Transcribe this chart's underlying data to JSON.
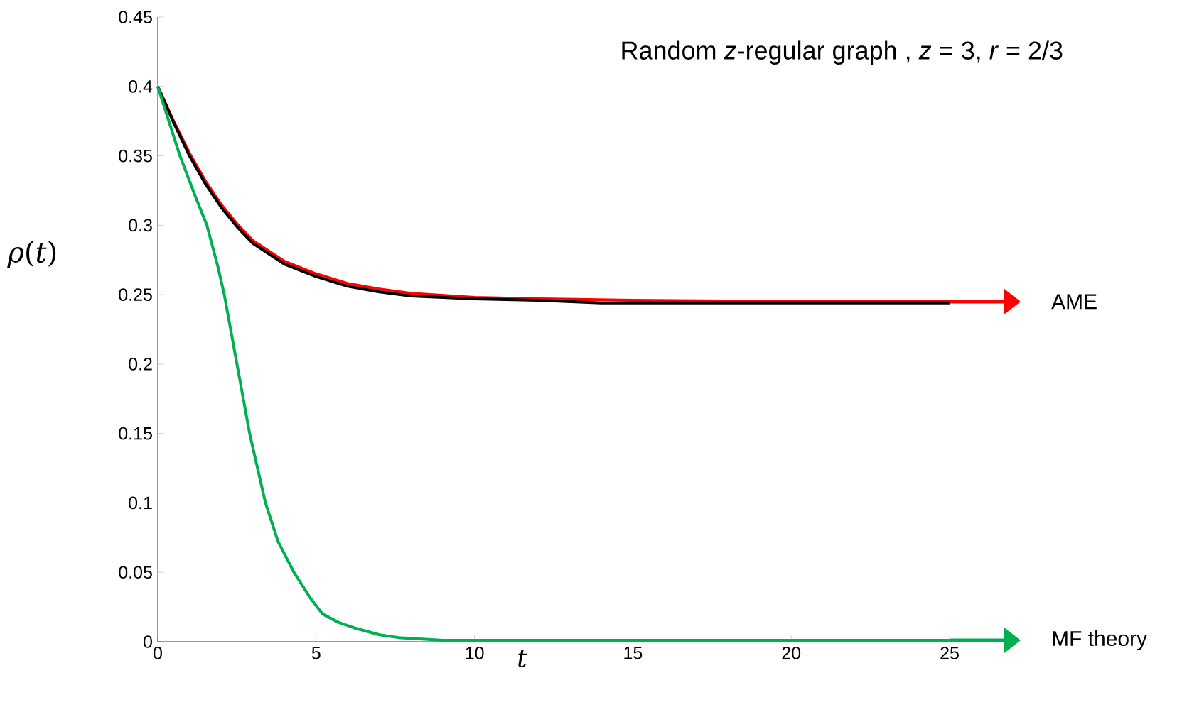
{
  "chart_data": {
    "type": "line",
    "title": "Random *z*-regular graph , *z* = 3,  *r* = 2/3",
    "xlabel": "*t*",
    "ylabel": "*ρ*(*t*)",
    "xlim": [
      0,
      25
    ],
    "ylim": [
      0,
      0.45
    ],
    "xticks": [
      0,
      5,
      10,
      15,
      20,
      25
    ],
    "yticks": [
      0,
      0.05,
      0.1,
      0.15,
      0.2,
      0.25,
      0.3,
      0.35,
      0.4,
      0.45
    ],
    "grid": false,
    "legend": "right",
    "series": [
      {
        "name": "AME",
        "color": "#ff0000",
        "x": [
          0,
          0.5,
          1,
          1.5,
          2,
          2.5,
          3,
          4,
          5,
          6,
          7,
          8,
          10,
          12,
          15,
          20,
          25
        ],
        "values": [
          0.4,
          0.375,
          0.352,
          0.332,
          0.315,
          0.301,
          0.289,
          0.274,
          0.265,
          0.258,
          0.254,
          0.251,
          0.248,
          0.247,
          0.246,
          0.245,
          0.245
        ]
      },
      {
        "color": "#000000",
        "x": [
          0,
          0.5,
          1,
          1.5,
          2,
          2.5,
          3,
          4,
          5,
          6,
          7,
          8,
          10,
          12,
          14,
          20,
          25
        ],
        "values": [
          0.4,
          0.374,
          0.35,
          0.33,
          0.313,
          0.299,
          0.287,
          0.272,
          0.263,
          0.256,
          0.252,
          0.249,
          0.247,
          0.246,
          0.244,
          0.244,
          0.244
        ]
      },
      {
        "name": "MF theory",
        "color": "#00b050",
        "x": [
          0,
          0.7,
          1.2,
          1.55,
          1.9,
          2.1,
          2.5,
          2.9,
          3.4,
          3.8,
          4.3,
          4.8,
          5.2,
          5.7,
          6.2,
          7,
          7.6,
          9,
          12,
          25
        ],
        "values": [
          0.4,
          0.35,
          0.32,
          0.3,
          0.27,
          0.25,
          0.2,
          0.15,
          0.1,
          0.072,
          0.05,
          0.032,
          0.02,
          0.014,
          0.01,
          0.005,
          0.003,
          0.001,
          0.001,
          0.001
        ]
      }
    ]
  }
}
